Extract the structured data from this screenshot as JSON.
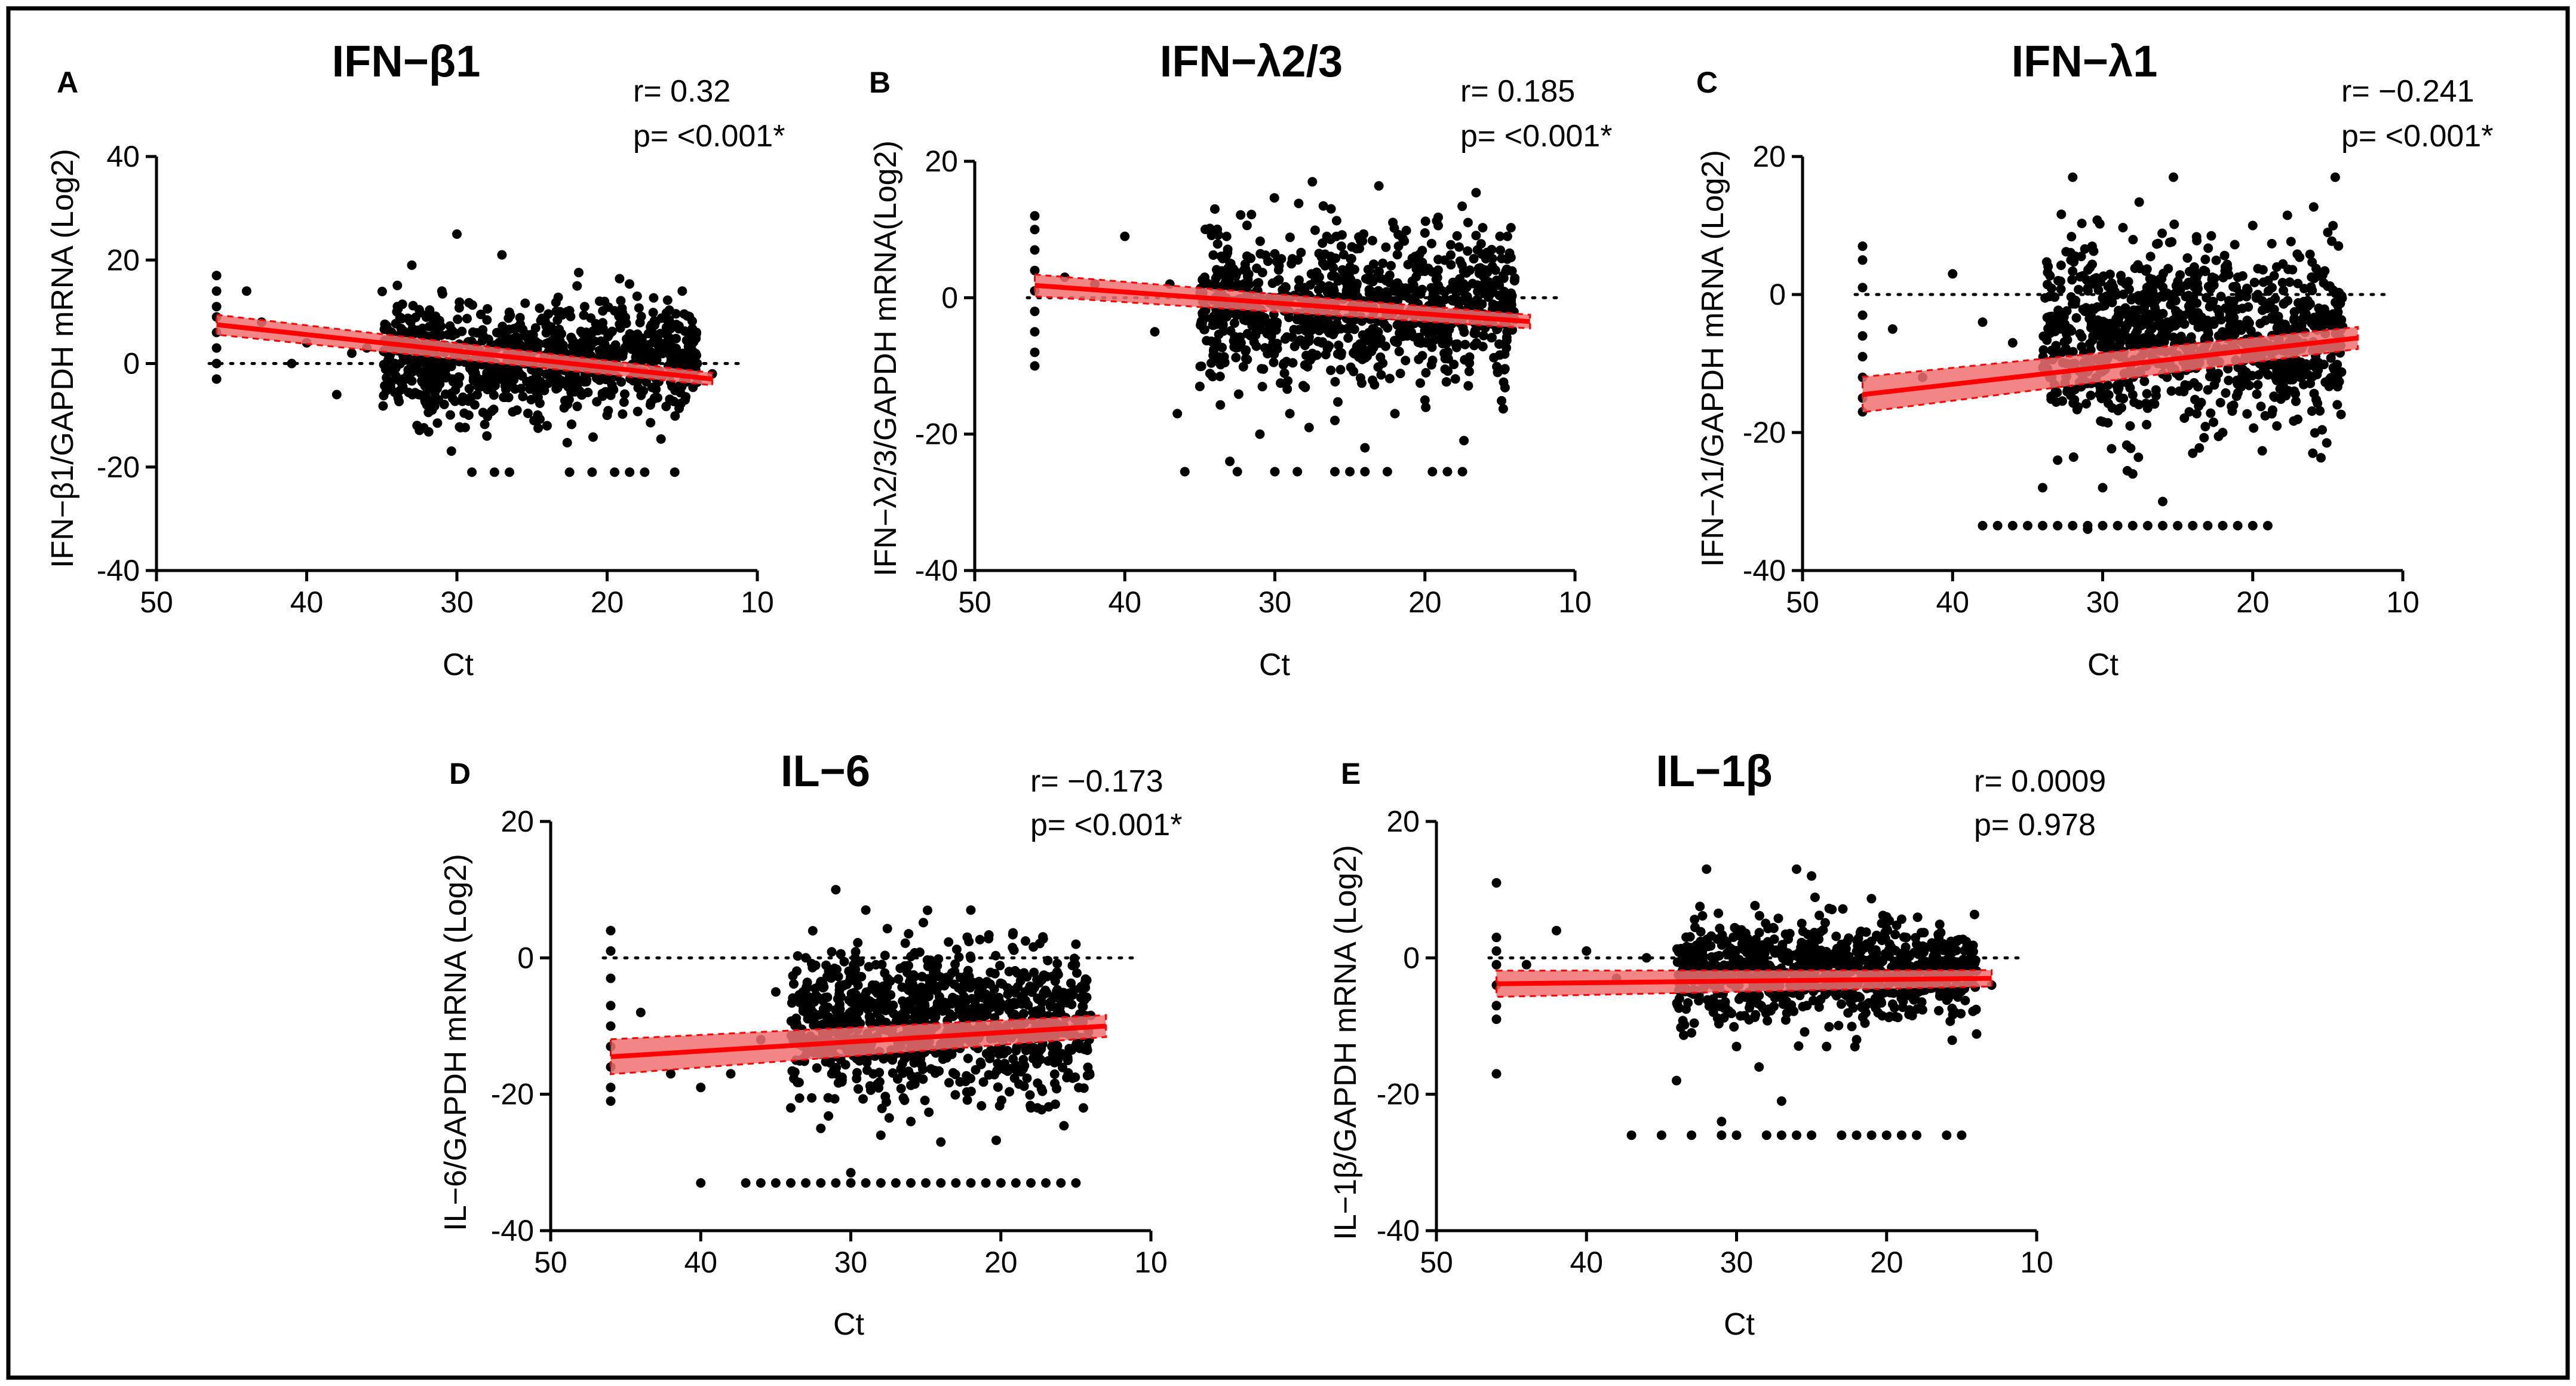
{
  "figure": {
    "border_color": "#000000",
    "fit_color": "#ff0000",
    "band_color": "#f07070",
    "point_color": "#000000"
  },
  "chart_data": [
    {
      "type": "scatter",
      "panel": "A",
      "title": "IFN−β1",
      "stats": {
        "r": "r= 0.32",
        "p": "p= <0.001*"
      },
      "ylabel": "IFN−β1/GAPDH mRNA (Log2)",
      "xlabel": "Ct",
      "xlim": [
        50,
        10
      ],
      "ylim": [
        -40,
        40
      ],
      "xticks": [
        50,
        40,
        30,
        20,
        10
      ],
      "yticks": [
        40,
        20,
        0,
        -20,
        -40
      ],
      "reference_line_y": 0,
      "fit": {
        "x": [
          46,
          13
        ],
        "y": [
          7.5,
          -3
        ],
        "band": 1.2
      },
      "cluster": {
        "x_range": [
          14,
          35
        ],
        "center_y": 1,
        "spread_y": 5.5,
        "count": 900
      },
      "points": [
        [
          46,
          17
        ],
        [
          46,
          14
        ],
        [
          46,
          11
        ],
        [
          46,
          9
        ],
        [
          46,
          6
        ],
        [
          46,
          3
        ],
        [
          46,
          0
        ],
        [
          46,
          -3
        ],
        [
          44,
          14
        ],
        [
          43,
          8
        ],
        [
          41,
          0
        ],
        [
          40,
          4
        ],
        [
          38,
          -6
        ],
        [
          37,
          2
        ],
        [
          36,
          3
        ],
        [
          34,
          10
        ],
        [
          33,
          19
        ],
        [
          32,
          -8
        ],
        [
          31,
          14
        ],
        [
          30,
          25
        ],
        [
          28,
          -14
        ],
        [
          27,
          21
        ],
        [
          26,
          -9
        ],
        [
          24,
          -12
        ],
        [
          22,
          15
        ],
        [
          20,
          -10
        ],
        [
          18,
          13
        ],
        [
          15,
          14
        ],
        [
          14,
          0
        ],
        [
          13,
          -2
        ],
        [
          29,
          -21
        ],
        [
          27.5,
          -21
        ],
        [
          26.5,
          -21
        ],
        [
          22.5,
          -21
        ],
        [
          21,
          -21
        ],
        [
          19.5,
          -21
        ],
        [
          18.5,
          -21
        ],
        [
          17.5,
          -21
        ],
        [
          15.5,
          -21
        ]
      ]
    },
    {
      "type": "scatter",
      "panel": "B",
      "title": "IFN−λ2/3",
      "stats": {
        "r": "r= 0.185",
        "p": "p= <0.001*"
      },
      "ylabel": "IFN−λ2/3/GAPDH mRNA(Log2)",
      "xlabel": "Ct",
      "xlim": [
        50,
        10
      ],
      "ylim": [
        -40,
        20
      ],
      "xticks": [
        50,
        40,
        30,
        20,
        10
      ],
      "yticks": [
        20,
        0,
        -20,
        -40
      ],
      "reference_line_y": 0,
      "fit": {
        "x": [
          46,
          13
        ],
        "y": [
          1.8,
          -3.5
        ],
        "band": 1.0
      },
      "cluster": {
        "x_range": [
          14,
          35
        ],
        "center_y": -1.5,
        "spread_y": 5.5,
        "count": 950
      },
      "points": [
        [
          46,
          12
        ],
        [
          46,
          10
        ],
        [
          46,
          7
        ],
        [
          46,
          4
        ],
        [
          46,
          1
        ],
        [
          46,
          -2
        ],
        [
          46,
          -5
        ],
        [
          46,
          -8
        ],
        [
          46,
          -10
        ],
        [
          44,
          3
        ],
        [
          42,
          2
        ],
        [
          40,
          9
        ],
        [
          38,
          -5
        ],
        [
          37,
          2
        ],
        [
          36.5,
          -17
        ],
        [
          35,
          -13
        ],
        [
          34,
          13
        ],
        [
          33,
          -24
        ],
        [
          31,
          -20
        ],
        [
          29,
          -17
        ],
        [
          27.5,
          17
        ],
        [
          26,
          -18
        ],
        [
          24,
          -22
        ],
        [
          22,
          -17
        ],
        [
          20,
          -15
        ],
        [
          15,
          9
        ],
        [
          14.5,
          9
        ],
        [
          36,
          -25.5
        ],
        [
          32.5,
          -25.5
        ],
        [
          30,
          -25.5
        ],
        [
          28.5,
          -25.5
        ],
        [
          26,
          -25.5
        ],
        [
          25,
          -25.5
        ],
        [
          24,
          -25.5
        ],
        [
          22.5,
          -25.5
        ],
        [
          19.5,
          -25.5
        ],
        [
          18.5,
          -25.5
        ],
        [
          17.5,
          -25.5
        ]
      ]
    },
    {
      "type": "scatter",
      "panel": "C",
      "title": "IFN−λ1",
      "stats": {
        "r": "r= −0.241",
        "p": "p= <0.001*"
      },
      "ylabel": "IFN−λ1/GAPDH mRNA (Log2)",
      "xlabel": "Ct",
      "xlim": [
        50,
        10
      ],
      "ylim": [
        -40,
        20
      ],
      "xticks": [
        50,
        40,
        30,
        20,
        10
      ],
      "yticks": [
        20,
        0,
        -20,
        -40
      ],
      "reference_line_y": 0,
      "fit": {
        "x": [
          46,
          13
        ],
        "y": [
          -14.5,
          -6.3
        ],
        "band": 1.6
      },
      "cluster": {
        "x_range": [
          14,
          34
        ],
        "center_y": -6,
        "spread_y": 6.5,
        "count": 1000
      },
      "points": [
        [
          46,
          7
        ],
        [
          46,
          5
        ],
        [
          46,
          1
        ],
        [
          46,
          -3
        ],
        [
          46,
          -6
        ],
        [
          46,
          -9
        ],
        [
          46,
          -12
        ],
        [
          46,
          -15
        ],
        [
          46,
          -17
        ],
        [
          44,
          -5
        ],
        [
          42,
          -12
        ],
        [
          40,
          3
        ],
        [
          38,
          -4
        ],
        [
          36,
          -7
        ],
        [
          34,
          -28
        ],
        [
          33,
          -24
        ],
        [
          32,
          17
        ],
        [
          31,
          -34
        ],
        [
          30,
          -28
        ],
        [
          28,
          -26
        ],
        [
          26,
          -30
        ],
        [
          24,
          -23
        ],
        [
          22,
          -20
        ],
        [
          20,
          10
        ],
        [
          16,
          -23
        ],
        [
          15,
          9
        ],
        [
          14.5,
          17
        ],
        [
          38,
          -33.5
        ],
        [
          37,
          -33.5
        ],
        [
          36,
          -33.5
        ],
        [
          35,
          -33.5
        ],
        [
          34,
          -33.5
        ],
        [
          33,
          -33.5
        ],
        [
          32,
          -33.5
        ],
        [
          31,
          -33.5
        ],
        [
          30,
          -33.5
        ],
        [
          29,
          -33.5
        ],
        [
          28,
          -33.5
        ],
        [
          27,
          -33.5
        ],
        [
          26,
          -33.5
        ],
        [
          25,
          -33.5
        ],
        [
          24,
          -33.5
        ],
        [
          23,
          -33.5
        ],
        [
          22,
          -33.5
        ],
        [
          21,
          -33.5
        ],
        [
          20,
          -33.5
        ],
        [
          19,
          -33.5
        ]
      ]
    },
    {
      "type": "scatter",
      "panel": "D",
      "title": "IL−6",
      "stats": {
        "r": "r= −0.173",
        "p": "p= <0.001*"
      },
      "ylabel": "IL−6/GAPDH mRNA (Log2)",
      "xlabel": "Ct",
      "xlim": [
        50,
        10
      ],
      "ylim": [
        -40,
        20
      ],
      "xticks": [
        50,
        40,
        30,
        20,
        10
      ],
      "yticks": [
        20,
        0,
        -20,
        -40
      ],
      "reference_line_y": 0,
      "fit": {
        "x": [
          46,
          13
        ],
        "y": [
          -14.5,
          -10
        ],
        "band": 1.6
      },
      "cluster": {
        "x_range": [
          14,
          34
        ],
        "center_y": -9,
        "spread_y": 5.5,
        "count": 1000
      },
      "points": [
        [
          46,
          4
        ],
        [
          46,
          1
        ],
        [
          46,
          -3
        ],
        [
          46,
          -7
        ],
        [
          46,
          -10
        ],
        [
          46,
          -13
        ],
        [
          46,
          -16
        ],
        [
          46,
          -19
        ],
        [
          46,
          -21
        ],
        [
          44,
          -8
        ],
        [
          42,
          -17
        ],
        [
          40,
          -19
        ],
        [
          38,
          -17
        ],
        [
          36,
          -12
        ],
        [
          35,
          -5
        ],
        [
          34,
          -22
        ],
        [
          33,
          0
        ],
        [
          32,
          -25
        ],
        [
          31,
          10
        ],
        [
          30,
          -31.5
        ],
        [
          29,
          7
        ],
        [
          28,
          -26
        ],
        [
          26,
          -24
        ],
        [
          24,
          -27
        ],
        [
          22,
          7
        ],
        [
          18,
          -22
        ],
        [
          15,
          2
        ],
        [
          14.5,
          -22
        ],
        [
          40,
          -33
        ],
        [
          37,
          -33
        ],
        [
          36,
          -33
        ],
        [
          35,
          -33
        ],
        [
          34,
          -33
        ],
        [
          33,
          -33
        ],
        [
          32,
          -33
        ],
        [
          31,
          -33
        ],
        [
          30,
          -33
        ],
        [
          29,
          -33
        ],
        [
          28,
          -33
        ],
        [
          27,
          -33
        ],
        [
          26,
          -33
        ],
        [
          25,
          -33
        ],
        [
          24,
          -33
        ],
        [
          23,
          -33
        ],
        [
          22,
          -33
        ],
        [
          21,
          -33
        ],
        [
          20,
          -33
        ],
        [
          19,
          -33
        ],
        [
          18,
          -33
        ],
        [
          17,
          -33
        ],
        [
          16,
          -33
        ],
        [
          15,
          -33
        ]
      ]
    },
    {
      "type": "scatter",
      "panel": "E",
      "title": "IL−1β",
      "stats": {
        "r": "r= 0.0009",
        "p": "p= 0.978"
      },
      "ylabel": "IL−1β/GAPDH mRNA (Log2)",
      "xlabel": "Ct",
      "xlim": [
        50,
        10
      ],
      "ylim": [
        -40,
        20
      ],
      "xticks": [
        50,
        40,
        30,
        20,
        10
      ],
      "yticks": [
        20,
        0,
        -20,
        -40
      ],
      "reference_line_y": 0,
      "fit": {
        "x": [
          46,
          13
        ],
        "y": [
          -3.8,
          -3.0
        ],
        "band": 1.2
      },
      "cluster": {
        "x_range": [
          14,
          34
        ],
        "center_y": -2,
        "spread_y": 3.5,
        "count": 900
      },
      "points": [
        [
          46,
          11
        ],
        [
          46,
          3
        ],
        [
          46,
          1
        ],
        [
          46,
          -1
        ],
        [
          46,
          -4
        ],
        [
          46,
          -7
        ],
        [
          46,
          -9
        ],
        [
          46,
          -17
        ],
        [
          44,
          -1
        ],
        [
          42,
          4
        ],
        [
          40,
          1
        ],
        [
          38,
          -3
        ],
        [
          36,
          0
        ],
        [
          34,
          -18
        ],
        [
          33,
          -11
        ],
        [
          32,
          13
        ],
        [
          31,
          -24
        ],
        [
          30,
          -13
        ],
        [
          28.5,
          -16
        ],
        [
          27,
          -21
        ],
        [
          26,
          13
        ],
        [
          25,
          12
        ],
        [
          24,
          -13
        ],
        [
          22,
          -12
        ],
        [
          20,
          6
        ],
        [
          18,
          2
        ],
        [
          16,
          1
        ],
        [
          13,
          -4
        ],
        [
          37,
          -26
        ],
        [
          35,
          -26
        ],
        [
          33,
          -26
        ],
        [
          31,
          -26
        ],
        [
          30,
          -26
        ],
        [
          28,
          -26
        ],
        [
          27,
          -26
        ],
        [
          26,
          -26
        ],
        [
          25,
          -26
        ],
        [
          23,
          -26
        ],
        [
          22,
          -26
        ],
        [
          21,
          -26
        ],
        [
          20,
          -26
        ],
        [
          19,
          -26
        ],
        [
          18,
          -26
        ],
        [
          16,
          -26
        ],
        [
          15,
          -26
        ]
      ]
    }
  ]
}
